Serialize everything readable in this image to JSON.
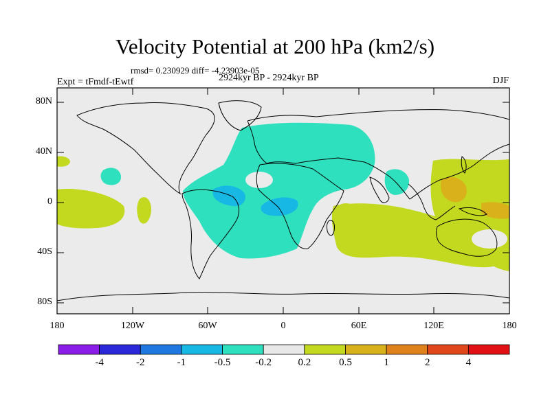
{
  "title": "Velocity Potential at 200 hPa (km2/s)",
  "stats": "rmsd= 0.230929 diff= -4.23903e-05",
  "experiment": "Expt = tFmdf-tEwtf",
  "period": "2924kyr BP - 2924kyr BP",
  "season": "DJF",
  "map": {
    "lat_ticks": [
      "80N",
      "40N",
      "0",
      "40S",
      "80S"
    ],
    "lon_ticks": [
      "180",
      "120W",
      "60W",
      "0",
      "60E",
      "120E",
      "180"
    ]
  },
  "colorbar": {
    "levels": [
      "-4",
      "-2",
      "-1",
      "-0.5",
      "-0.2",
      "0.2",
      "0.5",
      "1",
      "2",
      "4"
    ],
    "colors": [
      "#8a1ee8",
      "#2a28d8",
      "#1e78e0",
      "#17b8e3",
      "#2fe0bf",
      "#e8e8e8",
      "#c2d91f",
      "#d9b11a",
      "#e0821c",
      "#e0471a",
      "#e01014"
    ]
  },
  "colors": {
    "background": "#ebebeb",
    "neg_weak": "#2fe0bf",
    "neg_mid": "#17b8e3",
    "pos_weak": "#c2d91f",
    "pos_mid": "#d9b11a"
  }
}
